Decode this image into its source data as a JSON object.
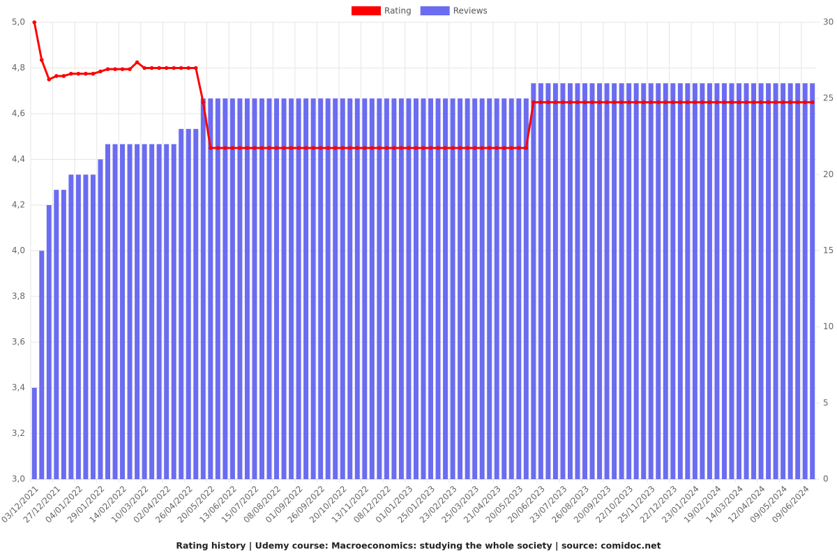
{
  "chart_data": {
    "type": "bar-line",
    "title": "Rating history | Udemy course: Macroeconomics: studying the whole society | source: comidoc.net",
    "categories": [
      "03/12/2021",
      null,
      null,
      "27/12/2021",
      null,
      null,
      "04/01/2022",
      null,
      null,
      "29/01/2022",
      null,
      null,
      "14/02/2022",
      null,
      null,
      "10/03/2022",
      null,
      null,
      "02/04/2022",
      null,
      null,
      "26/04/2022",
      null,
      null,
      "20/05/2022",
      null,
      null,
      "13/06/2022",
      null,
      null,
      "15/07/2022",
      null,
      null,
      "08/08/2022",
      null,
      null,
      "01/09/2022",
      null,
      null,
      "26/09/2022",
      null,
      null,
      "20/10/2022",
      null,
      null,
      "13/11/2022",
      null,
      null,
      "08/12/2022",
      null,
      null,
      "01/01/2023",
      null,
      null,
      "25/01/2023",
      null,
      null,
      "23/02/2023",
      null,
      null,
      "25/03/2023",
      null,
      null,
      "21/04/2023",
      null,
      null,
      "20/05/2023",
      null,
      null,
      "20/06/2023",
      null,
      null,
      "23/07/2023",
      null,
      null,
      "26/08/2023",
      null,
      null,
      "20/09/2023",
      null,
      null,
      "22/10/2023",
      null,
      null,
      "25/11/2023",
      null,
      null,
      "22/12/2023",
      null,
      null,
      "23/01/2024",
      null,
      null,
      "19/02/2024",
      null,
      null,
      "14/03/2024",
      null,
      null,
      "12/04/2024",
      null,
      null,
      "09/05/2024",
      null,
      null,
      "09/06/2024",
      null
    ],
    "series": [
      {
        "name": "Rating",
        "color": "#ff0000",
        "type": "line",
        "axis": "y",
        "values": [
          5.0,
          4.835,
          4.75,
          4.765,
          4.765,
          4.775,
          4.775,
          4.775,
          4.775,
          4.785,
          4.795,
          4.795,
          4.795,
          4.795,
          4.825,
          4.8,
          4.8,
          4.8,
          4.8,
          4.8,
          4.8,
          4.8,
          4.8,
          4.65,
          4.45,
          4.45,
          4.45,
          4.45,
          4.45,
          4.45,
          4.45,
          4.45,
          4.45,
          4.45,
          4.45,
          4.45,
          4.45,
          4.45,
          4.45,
          4.45,
          4.45,
          4.45,
          4.45,
          4.45,
          4.45,
          4.45,
          4.45,
          4.45,
          4.45,
          4.45,
          4.45,
          4.45,
          4.45,
          4.45,
          4.45,
          4.45,
          4.45,
          4.45,
          4.45,
          4.45,
          4.45,
          4.45,
          4.45,
          4.45,
          4.45,
          4.45,
          4.45,
          4.45,
          4.65,
          4.65,
          4.65,
          4.65,
          4.65,
          4.65,
          4.65,
          4.65,
          4.65,
          4.65,
          4.65,
          4.65,
          4.65,
          4.65,
          4.65,
          4.65,
          4.65,
          4.65,
          4.65,
          4.65,
          4.65,
          4.65,
          4.65,
          4.65,
          4.65,
          4.65,
          4.65,
          4.65,
          4.65,
          4.65,
          4.65,
          4.65,
          4.65,
          4.65,
          4.65,
          4.65,
          4.65,
          4.65,
          4.65
        ]
      },
      {
        "name": "Reviews",
        "color": "#6b6cf0",
        "type": "bar",
        "axis": "y2",
        "values": [
          6,
          15,
          18,
          19,
          19,
          20,
          20,
          20,
          20,
          21,
          22,
          22,
          22,
          22,
          22,
          22,
          22,
          22,
          22,
          22,
          23,
          23,
          23,
          25,
          25,
          25,
          25,
          25,
          25,
          25,
          25,
          25,
          25,
          25,
          25,
          25,
          25,
          25,
          25,
          25,
          25,
          25,
          25,
          25,
          25,
          25,
          25,
          25,
          25,
          25,
          25,
          25,
          25,
          25,
          25,
          25,
          25,
          25,
          25,
          25,
          25,
          25,
          25,
          25,
          25,
          25,
          25,
          25,
          26,
          26,
          26,
          26,
          26,
          26,
          26,
          26,
          26,
          26,
          26,
          26,
          26,
          26,
          26,
          26,
          26,
          26,
          26,
          26,
          26,
          26,
          26,
          26,
          26,
          26,
          26,
          26,
          26,
          26,
          26,
          26,
          26,
          26,
          26,
          26,
          26,
          26,
          26
        ]
      }
    ],
    "ylim": [
      3.0,
      5.0
    ],
    "yticks": [
      {
        "value": 3.0,
        "label": "3,0"
      },
      {
        "value": 3.2,
        "label": "3,2"
      },
      {
        "value": 3.4,
        "label": "3,4"
      },
      {
        "value": 3.6,
        "label": "3,6"
      },
      {
        "value": 3.8,
        "label": "3,8"
      },
      {
        "value": 4.0,
        "label": "4,0"
      },
      {
        "value": 4.2,
        "label": "4,2"
      },
      {
        "value": 4.4,
        "label": "4,4"
      },
      {
        "value": 4.6,
        "label": "4,6"
      },
      {
        "value": 4.8,
        "label": "4,8"
      },
      {
        "value": 5.0,
        "label": "5,0"
      }
    ],
    "y2lim": [
      0,
      30
    ],
    "y2ticks": [
      0,
      5,
      10,
      15,
      20,
      25,
      30
    ],
    "grid": true,
    "legend": "top"
  }
}
